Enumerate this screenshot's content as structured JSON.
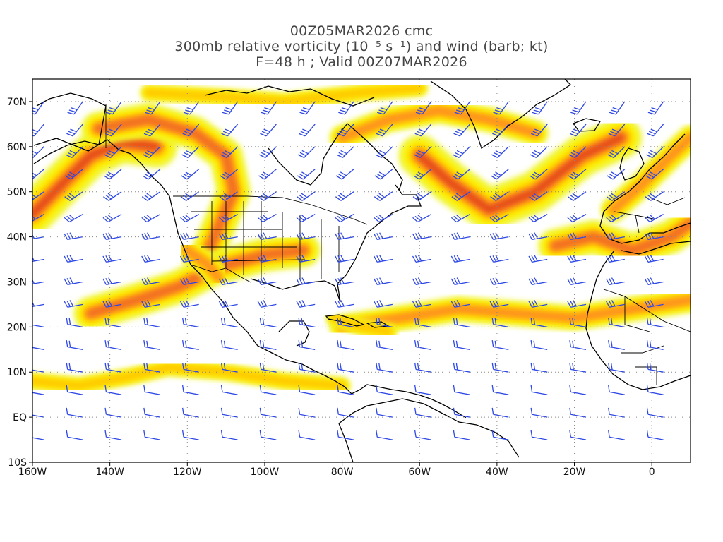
{
  "title": {
    "line1": "00Z05MAR2026 cmc",
    "line2": "300mb relative vorticity (10⁻⁵ s⁻¹) and wind (barb; kt)",
    "line3": "F=48 h ; Valid 00Z07MAR2026"
  },
  "map": {
    "lon_range": [
      -160,
      10
    ],
    "lat_range": [
      -10,
      75
    ],
    "grid_style": "dotted",
    "lat_ticks": [
      {
        "v": 70,
        "label": "70N"
      },
      {
        "v": 60,
        "label": "60N"
      },
      {
        "v": 50,
        "label": "50N"
      },
      {
        "v": 40,
        "label": "40N"
      },
      {
        "v": 30,
        "label": "30N"
      },
      {
        "v": 20,
        "label": "20N"
      },
      {
        "v": 10,
        "label": "10N"
      },
      {
        "v": 0,
        "label": "EQ"
      },
      {
        "v": -10,
        "label": "10S"
      }
    ],
    "lon_ticks": [
      {
        "v": -160,
        "label": "160W"
      },
      {
        "v": -140,
        "label": "140W"
      },
      {
        "v": -120,
        "label": "120W"
      },
      {
        "v": -100,
        "label": "100W"
      },
      {
        "v": -80,
        "label": "80W"
      },
      {
        "v": -60,
        "label": "60W"
      },
      {
        "v": -40,
        "label": "40W"
      },
      {
        "v": -20,
        "label": "20W"
      },
      {
        "v": 0,
        "label": "0"
      }
    ],
    "colors": {
      "shade_1": "#f0f530",
      "shade_2": "#fff000",
      "shade_3": "#ffc800",
      "shade_4": "#ff9020",
      "shade_5": "#f06a20",
      "shade_6": "#e03c18",
      "barb": "#2e48e6",
      "coast": "#000000"
    },
    "vorticity_features": [
      {
        "name": "north-pacific-jet",
        "pts": [
          [
            -160,
            45
          ],
          [
            -152,
            52
          ],
          [
            -145,
            58
          ],
          [
            -137,
            61
          ],
          [
            -128,
            60
          ]
        ],
        "width": 5
      },
      {
        "name": "alaska-canada-band",
        "pts": [
          [
            -143,
            64
          ],
          [
            -130,
            66
          ],
          [
            -118,
            63
          ],
          [
            -110,
            58
          ],
          [
            -108,
            50
          ],
          [
            -112,
            42
          ],
          [
            -115,
            36
          ]
        ],
        "width": 4
      },
      {
        "name": "subtropical-jet",
        "pts": [
          [
            -145,
            23
          ],
          [
            -133,
            26
          ],
          [
            -122,
            29
          ],
          [
            -113,
            33
          ],
          [
            -100,
            36
          ],
          [
            -90,
            37
          ]
        ],
        "width": 4
      },
      {
        "name": "baja-core",
        "pts": [
          [
            -120,
            37
          ],
          [
            -115,
            34
          ],
          [
            -112,
            31
          ]
        ],
        "width": 3
      },
      {
        "name": "atlantic-trough",
        "pts": [
          [
            -60,
            58
          ],
          [
            -52,
            52
          ],
          [
            -42,
            46
          ],
          [
            -30,
            50
          ],
          [
            -18,
            58
          ],
          [
            -8,
            62
          ]
        ],
        "width": 5
      },
      {
        "name": "greenland-band",
        "pts": [
          [
            -80,
            62
          ],
          [
            -68,
            66
          ],
          [
            -55,
            68
          ],
          [
            -42,
            66
          ],
          [
            -30,
            63
          ]
        ],
        "width": 3
      },
      {
        "name": "iberia-cutoff",
        "pts": [
          [
            -25,
            38
          ],
          [
            -15,
            40
          ],
          [
            -5,
            37
          ],
          [
            5,
            40
          ],
          [
            10,
            43
          ]
        ],
        "width": 4
      },
      {
        "name": "west-europe-ridge",
        "pts": [
          [
            -10,
            46
          ],
          [
            -2,
            52
          ],
          [
            5,
            58
          ],
          [
            10,
            62
          ]
        ],
        "width": 3
      },
      {
        "name": "tropical-atlantic",
        "pts": [
          [
            -80,
            20
          ],
          [
            -65,
            22
          ],
          [
            -50,
            24
          ],
          [
            -35,
            23
          ],
          [
            -20,
            22
          ],
          [
            -5,
            24
          ],
          [
            10,
            26
          ]
        ],
        "width": 3
      },
      {
        "name": "caribbean",
        "pts": [
          [
            -82,
            22
          ],
          [
            -75,
            20
          ],
          [
            -68,
            19
          ]
        ],
        "width": 2
      },
      {
        "name": "east-pacific-itcz",
        "pts": [
          [
            -160,
            8
          ],
          [
            -148,
            7
          ],
          [
            -135,
            9
          ],
          [
            -125,
            11
          ],
          [
            -110,
            10
          ],
          [
            -95,
            8
          ],
          [
            -80,
            7
          ]
        ],
        "width": 2
      },
      {
        "name": "arctic-band",
        "pts": [
          [
            -130,
            72
          ],
          [
            -110,
            71
          ],
          [
            -95,
            70
          ],
          [
            -75,
            72
          ],
          [
            -60,
            73
          ]
        ],
        "width": 2
      }
    ]
  }
}
